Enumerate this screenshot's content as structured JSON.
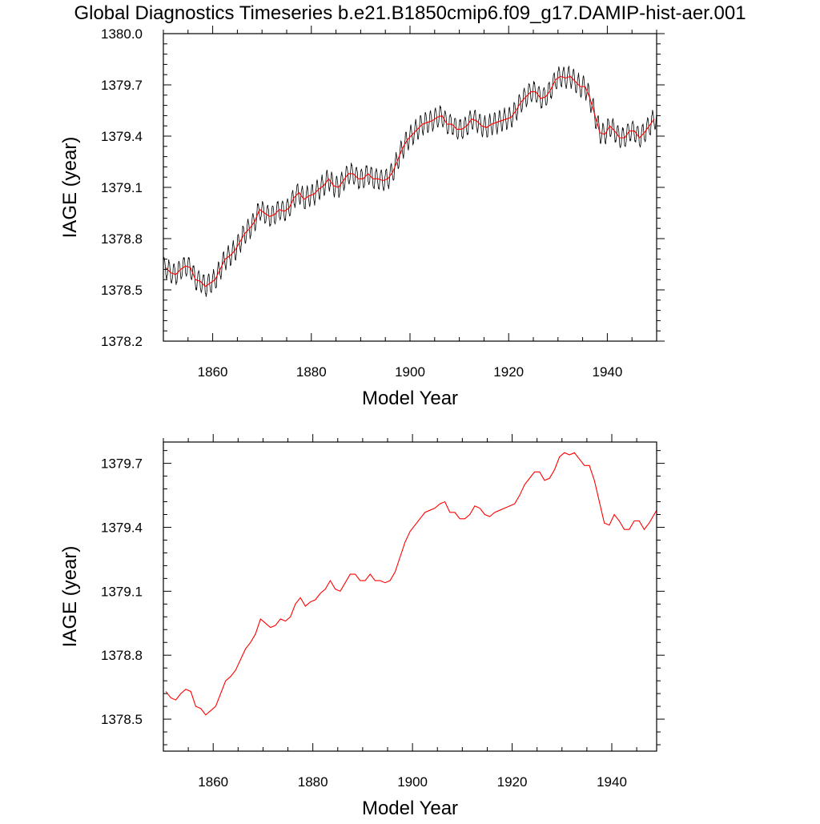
{
  "title": "Global Diagnostics Timeseries b.e21.B1850cmip6.f09_g17.DAMIP-hist-aer.001",
  "colors": {
    "monthly": "#000000",
    "annual": "#ff0000",
    "axis": "#000000"
  },
  "chart_data": [
    {
      "type": "line",
      "xlabel": "Model Year",
      "ylabel": "IAGE (year)",
      "xlim": [
        1850,
        1950
      ],
      "ylim": [
        1378.2,
        1380.0
      ],
      "xticks": [
        1860,
        1880,
        1900,
        1920,
        1940
      ],
      "xtick_labels": [
        "1860",
        "1880",
        "1900",
        "1920",
        "1940"
      ],
      "yticks": [
        1378.2,
        1378.5,
        1378.8,
        1379.1,
        1379.4,
        1379.7,
        1380.0
      ],
      "ytick_labels": [
        "1378.2",
        "1378.5",
        "1378.8",
        "1379.1",
        "1379.4",
        "1379.7",
        "1380.0"
      ],
      "grid": false,
      "series": [
        {
          "style": "monthly",
          "color": "#000000",
          "seasonal_amplitude": 0.06
        },
        {
          "style": "annual",
          "color": "#ff0000"
        }
      ]
    },
    {
      "type": "line",
      "xlabel": "Model Year",
      "ylabel": "IAGE (year)",
      "xlim": [
        1850,
        1949
      ],
      "ylim": [
        1378.35,
        1379.8
      ],
      "xticks": [
        1860,
        1880,
        1900,
        1920,
        1940
      ],
      "xtick_labels": [
        "1860",
        "1880",
        "1900",
        "1920",
        "1940"
      ],
      "yticks": [
        1378.5,
        1378.8,
        1379.1,
        1379.4,
        1379.7
      ],
      "ytick_labels": [
        "1378.5",
        "1378.8",
        "1379.1",
        "1379.4",
        "1379.7"
      ],
      "grid": false,
      "series": [
        {
          "style": "annual",
          "color": "#ff0000"
        }
      ]
    }
  ],
  "annual_mean": {
    "x": [
      1850,
      1851,
      1852,
      1853,
      1854,
      1855,
      1856,
      1857,
      1858,
      1859,
      1860,
      1861,
      1862,
      1863,
      1864,
      1865,
      1866,
      1867,
      1868,
      1869,
      1870,
      1871,
      1872,
      1873,
      1874,
      1875,
      1876,
      1877,
      1878,
      1879,
      1880,
      1881,
      1882,
      1883,
      1884,
      1885,
      1886,
      1887,
      1888,
      1889,
      1890,
      1891,
      1892,
      1893,
      1894,
      1895,
      1896,
      1897,
      1898,
      1899,
      1900,
      1901,
      1902,
      1903,
      1904,
      1905,
      1906,
      1907,
      1908,
      1909,
      1910,
      1911,
      1912,
      1913,
      1914,
      1915,
      1916,
      1917,
      1918,
      1919,
      1920,
      1921,
      1922,
      1923,
      1924,
      1925,
      1926,
      1927,
      1928,
      1929,
      1930,
      1931,
      1932,
      1933,
      1934,
      1935,
      1936,
      1937,
      1938,
      1939,
      1940,
      1941,
      1942,
      1943,
      1944,
      1945,
      1946,
      1947,
      1948,
      1949
    ],
    "y": [
      1378.63,
      1378.6,
      1378.59,
      1378.62,
      1378.64,
      1378.63,
      1378.56,
      1378.55,
      1378.52,
      1378.54,
      1378.56,
      1378.62,
      1378.68,
      1378.7,
      1378.73,
      1378.78,
      1378.83,
      1378.86,
      1378.9,
      1378.97,
      1378.95,
      1378.93,
      1378.94,
      1378.97,
      1378.96,
      1378.98,
      1379.04,
      1379.07,
      1379.03,
      1379.05,
      1379.06,
      1379.09,
      1379.11,
      1379.15,
      1379.11,
      1379.1,
      1379.14,
      1379.18,
      1379.18,
      1379.15,
      1379.15,
      1379.18,
      1379.15,
      1379.15,
      1379.14,
      1379.15,
      1379.19,
      1379.26,
      1379.33,
      1379.38,
      1379.41,
      1379.44,
      1379.47,
      1379.48,
      1379.49,
      1379.51,
      1379.52,
      1379.47,
      1379.47,
      1379.44,
      1379.44,
      1379.46,
      1379.5,
      1379.49,
      1379.46,
      1379.45,
      1379.47,
      1379.48,
      1379.49,
      1379.5,
      1379.51,
      1379.55,
      1379.6,
      1379.63,
      1379.66,
      1379.66,
      1379.62,
      1379.63,
      1379.67,
      1379.73,
      1379.75,
      1379.74,
      1379.75,
      1379.72,
      1379.69,
      1379.69,
      1379.62,
      1379.52,
      1379.42,
      1379.41,
      1379.46,
      1379.43,
      1379.39,
      1379.39,
      1379.43,
      1379.43,
      1379.39,
      1379.42,
      1379.46,
      1379.5
    ]
  }
}
